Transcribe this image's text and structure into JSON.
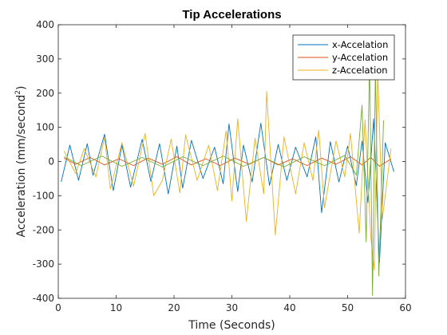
{
  "chart_data": {
    "type": "line",
    "title": "Tip Accelerations",
    "xlabel": "Time (Seconds)",
    "ylabel_base": "Acceleration (mm/second",
    "ylabel_sup": "2",
    "ylabel_close": ")",
    "xlim": [
      0,
      60
    ],
    "ylim": [
      -400,
      400
    ],
    "xticks": [
      0,
      10,
      20,
      30,
      40,
      50,
      60
    ],
    "yticks": [
      -400,
      -300,
      -200,
      -100,
      0,
      100,
      200,
      300,
      400
    ],
    "grid": false,
    "legend_position": "top-right",
    "series": [
      {
        "name": "x-Accelation",
        "color": "#0072bd",
        "x": [
          0.5,
          2.0,
          3.5,
          5.0,
          6.0,
          8.0,
          9.5,
          11.0,
          12.5,
          14.5,
          16.0,
          17.5,
          19.0,
          20.5,
          21.5,
          23.0,
          25.0,
          27.0,
          28.5,
          29.5,
          31.0,
          32.0,
          33.5,
          35.0,
          36.5,
          38.0,
          39.5,
          41.0,
          43.0,
          44.5,
          45.5,
          47.0,
          48.5,
          50.0,
          51.5,
          52.5,
          53.5,
          54.5,
          55.5,
          56.5,
          58.0
        ],
        "y": [
          -60,
          48,
          -55,
          52,
          -40,
          80,
          -85,
          48,
          -75,
          65,
          -58,
          52,
          -95,
          45,
          -78,
          62,
          -50,
          42,
          -65,
          110,
          -88,
          48,
          -60,
          112,
          -70,
          50,
          -55,
          42,
          -45,
          72,
          -150,
          58,
          -60,
          45,
          -70,
          60,
          -120,
          125,
          -295,
          55,
          -30
        ]
      },
      {
        "name": "y-Accelation",
        "color": "#d95319",
        "x": [
          1.0,
          3.0,
          5.5,
          8.0,
          10.5,
          13.0,
          15.5,
          18.0,
          20.5,
          23.0,
          25.5,
          28.0,
          30.5,
          33.0,
          35.5,
          38.0,
          40.5,
          43.0,
          45.5,
          48.0,
          50.5,
          52.5,
          54.0,
          55.5,
          57.5
        ],
        "y": [
          10,
          -8,
          12,
          -10,
          8,
          -12,
          10,
          -8,
          14,
          -10,
          8,
          -12,
          10,
          -8,
          12,
          -10,
          8,
          -12,
          10,
          -8,
          14,
          -10,
          12,
          -14,
          8
        ]
      },
      {
        "name": "z-Accelation",
        "color": "#edb120",
        "x": [
          1.0,
          3.0,
          4.5,
          6.5,
          8.0,
          9.0,
          11.0,
          13.0,
          15.0,
          16.5,
          18.0,
          19.5,
          21.0,
          22.0,
          24.0,
          26.0,
          27.5,
          29.0,
          30.0,
          31.0,
          32.5,
          34.0,
          35.5,
          36.0,
          37.5,
          39.0,
          41.0,
          42.5,
          44.0,
          45.0,
          46.0,
          48.0,
          49.5,
          50.5,
          52.0,
          53.0,
          54.0,
          54.6,
          55.2,
          56.0,
          57.5
        ],
        "y": [
          30,
          -35,
          38,
          -45,
          70,
          -80,
          55,
          -72,
          82,
          -100,
          -55,
          65,
          -92,
          78,
          -55,
          48,
          -85,
          90,
          -115,
          125,
          -175,
          68,
          -95,
          205,
          -215,
          72,
          -95,
          55,
          -55,
          92,
          -135,
          60,
          -45,
          82,
          -210,
          122,
          -220,
          -318,
          262,
          -168,
          38
        ]
      },
      {
        "name": "",
        "color": "#77ac30",
        "x": [
          1.0,
          4.0,
          7.5,
          11.0,
          14.5,
          18.0,
          21.5,
          25.0,
          28.5,
          32.0,
          35.5,
          39.0,
          42.5,
          46.0,
          49.5,
          51.5,
          52.5,
          53.2,
          53.8,
          54.3,
          54.8,
          55.4,
          56.2
        ],
        "y": [
          14,
          -12,
          16,
          -14,
          12,
          -16,
          14,
          -12,
          16,
          -14,
          12,
          -16,
          14,
          -12,
          18,
          -40,
          165,
          -235,
          290,
          -392,
          270,
          -335,
          120
        ]
      }
    ]
  }
}
